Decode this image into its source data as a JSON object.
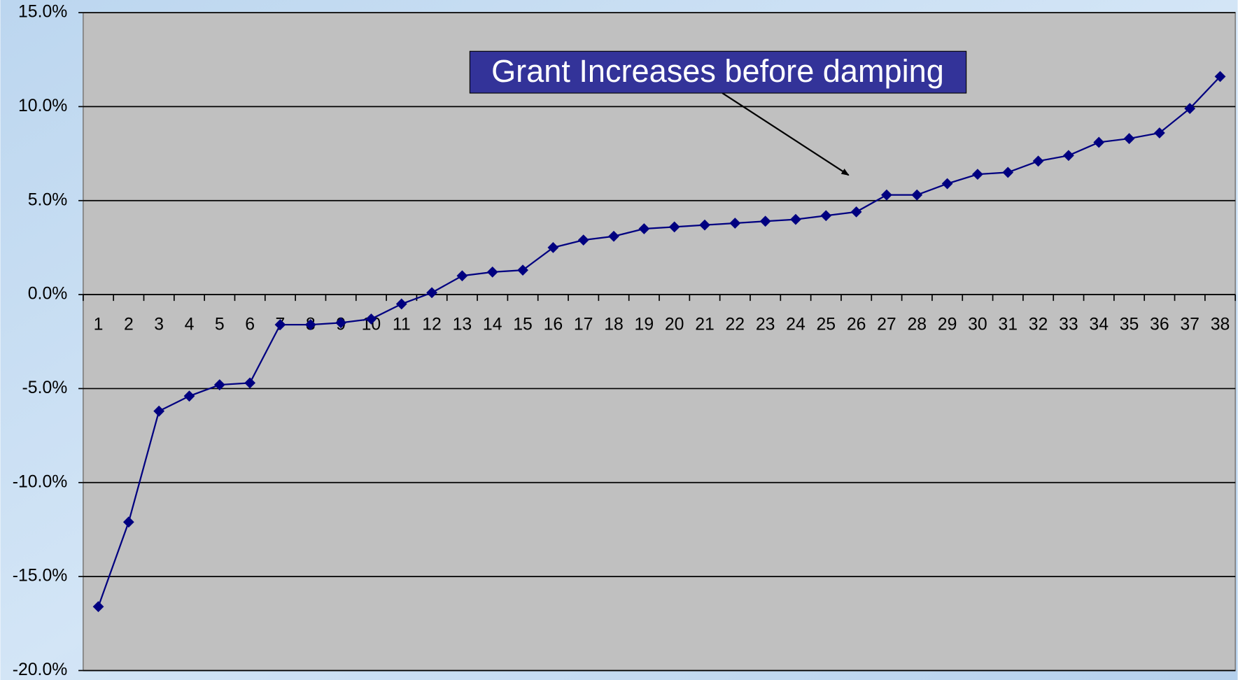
{
  "chart_data": {
    "type": "line",
    "annotation": "Grant Increases before damping",
    "categories": [
      "1",
      "2",
      "3",
      "4",
      "5",
      "6",
      "7",
      "8",
      "9",
      "10",
      "11",
      "12",
      "13",
      "14",
      "15",
      "16",
      "17",
      "18",
      "19",
      "20",
      "21",
      "22",
      "23",
      "24",
      "25",
      "26",
      "27",
      "28",
      "29",
      "30",
      "31",
      "32",
      "33",
      "34",
      "35",
      "36",
      "37",
      "38"
    ],
    "series": [
      {
        "color": "#000080",
        "values": [
          -16.6,
          -12.1,
          -6.2,
          -5.4,
          -4.8,
          -4.7,
          -1.6,
          -1.6,
          -1.5,
          -1.3,
          -0.5,
          0.1,
          1.0,
          1.2,
          1.3,
          2.5,
          2.9,
          3.1,
          3.5,
          3.6,
          3.7,
          3.8,
          3.9,
          4.0,
          4.2,
          4.4,
          5.3,
          5.3,
          5.9,
          6.4,
          6.5,
          7.1,
          7.4,
          8.1,
          8.3,
          8.6,
          9.9,
          11.6
        ]
      }
    ],
    "ylim": [
      -20,
      15
    ],
    "yticks": [
      {
        "value": -20,
        "label": "-20.0%"
      },
      {
        "value": -15,
        "label": "-15.0%"
      },
      {
        "value": -10,
        "label": "-10.0%"
      },
      {
        "value": -5,
        "label": "-5.0%"
      },
      {
        "value": 0,
        "label": "0.0%"
      },
      {
        "value": 5,
        "label": "5.0%"
      },
      {
        "value": 10,
        "label": "10.0%"
      },
      {
        "value": 15,
        "label": "15.0%"
      }
    ],
    "grid": true
  }
}
